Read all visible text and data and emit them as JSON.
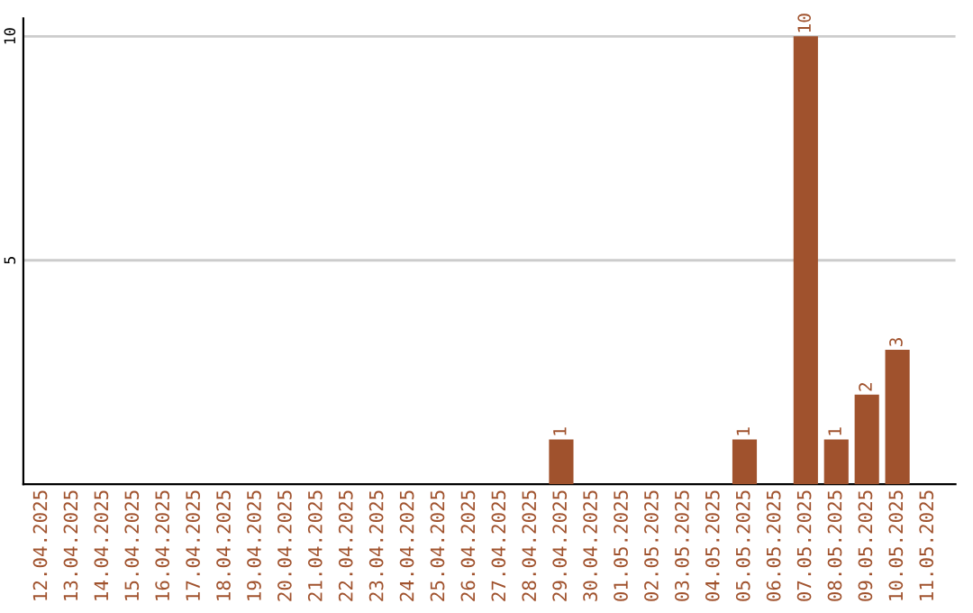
{
  "chart_data": {
    "type": "bar",
    "categories": [
      "12.04.2025",
      "13.04.2025",
      "14.04.2025",
      "15.04.2025",
      "16.04.2025",
      "17.04.2025",
      "18.04.2025",
      "19.04.2025",
      "20.04.2025",
      "21.04.2025",
      "22.04.2025",
      "23.04.2025",
      "24.04.2025",
      "25.04.2025",
      "26.04.2025",
      "27.04.2025",
      "28.04.2025",
      "29.04.2025",
      "30.04.2025",
      "01.05.2025",
      "02.05.2025",
      "03.05.2025",
      "04.05.2025",
      "05.05.2025",
      "06.05.2025",
      "07.05.2025",
      "08.05.2025",
      "09.05.2025",
      "10.05.2025",
      "11.05.2025"
    ],
    "values": [
      0,
      0,
      0,
      0,
      0,
      0,
      0,
      0,
      0,
      0,
      0,
      0,
      0,
      0,
      0,
      0,
      0,
      1,
      0,
      0,
      0,
      0,
      0,
      1,
      0,
      10,
      1,
      2,
      3,
      0
    ],
    "value_labels": [
      null,
      null,
      null,
      null,
      null,
      null,
      null,
      null,
      null,
      null,
      null,
      null,
      null,
      null,
      null,
      null,
      null,
      "1",
      null,
      null,
      null,
      null,
      null,
      "1",
      null,
      "10",
      "1",
      "2",
      "3",
      null
    ],
    "color": "#a0522d",
    "ylim": [
      0,
      10.4
    ],
    "yticks": [
      5,
      10
    ],
    "grid": "y"
  }
}
